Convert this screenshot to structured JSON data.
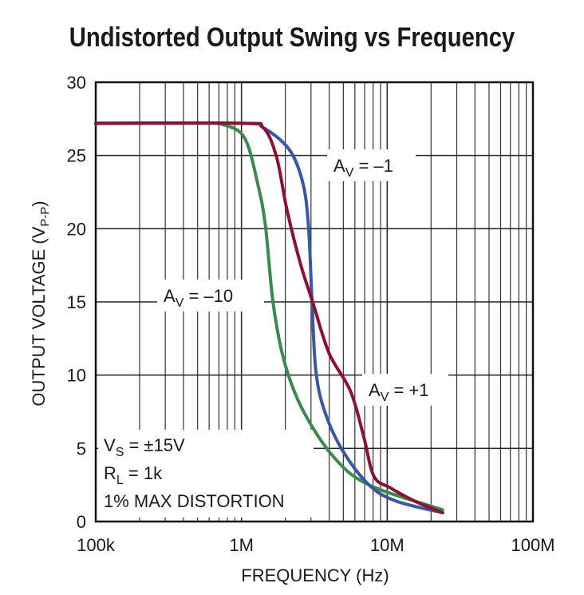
{
  "chart_data": {
    "type": "line",
    "title": "Undistorted Output Swing vs Frequency",
    "xlabel": "FREQUENCY (Hz)",
    "ylabel": {
      "main": "OUTPUT VOLTAGE (V",
      "sub": "P-P",
      "end": ")"
    },
    "x_scale": "log",
    "xlim": [
      100000,
      100000000
    ],
    "ylim": [
      0,
      30
    ],
    "grid": true,
    "x_ticks": [
      {
        "value": 100000,
        "label": "100k"
      },
      {
        "value": 1000000,
        "label": "1M"
      },
      {
        "value": 10000000,
        "label": "10M"
      },
      {
        "value": 100000000,
        "label": "100M"
      }
    ],
    "y_ticks": [
      {
        "value": 0,
        "label": "0"
      },
      {
        "value": 5,
        "label": "5"
      },
      {
        "value": 10,
        "label": "10"
      },
      {
        "value": 15,
        "label": "15"
      },
      {
        "value": 20,
        "label": "20"
      },
      {
        "value": 25,
        "label": "25"
      },
      {
        "value": 30,
        "label": "30"
      }
    ],
    "series": [
      {
        "name": "AV = –10",
        "label": {
          "main": "A",
          "sub": "V",
          "rest": " = –10"
        },
        "color": "#3a8a4e",
        "x": [
          100000,
          500000,
          750000,
          1050000,
          1290000,
          1460000,
          1650000,
          1970000,
          2640000,
          4300000,
          7500000,
          24000000
        ],
        "y": [
          27.2,
          27.2,
          27.1,
          26.2,
          23.1,
          20.2,
          14.9,
          10.9,
          7.6,
          4.4,
          2.5,
          0.8
        ]
      },
      {
        "name": "AV = –1",
        "label": {
          "main": "A",
          "sub": "V",
          "rest": " = –1"
        },
        "color": "#3a56a6",
        "x": [
          100000,
          1000000,
          1410000,
          2130000,
          2640000,
          2880000,
          3040000,
          3230000,
          3700000,
          4900000,
          7500000,
          11500000,
          24000000
        ],
        "y": [
          27.2,
          27.2,
          26.9,
          25.4,
          23.1,
          20.2,
          15.3,
          10.4,
          7.6,
          4.9,
          2.5,
          1.4,
          0.6
        ]
      },
      {
        "name": "AV = +1",
        "label": {
          "main": "A",
          "sub": "V",
          "rest": " = +1"
        },
        "color": "#8c1230",
        "x": [
          100000,
          1000000,
          1410000,
          1740000,
          2050000,
          2540000,
          3100000,
          3990000,
          5600000,
          6900000,
          8100000,
          10500000,
          15400000,
          24000000
        ],
        "y": [
          27.2,
          27.2,
          26.9,
          24.9,
          21.3,
          17.6,
          14.9,
          11.5,
          8.9,
          5.8,
          3.1,
          2.3,
          1.4,
          0.6
        ]
      }
    ],
    "conditions": [
      {
        "main": "V",
        "sub": "S",
        "rest": " = ±15V"
      },
      {
        "main": "R",
        "sub": "L",
        "rest": " = 1k"
      },
      {
        "main": "1% MAX DISTORTION",
        "sub": "",
        "rest": ""
      }
    ]
  }
}
